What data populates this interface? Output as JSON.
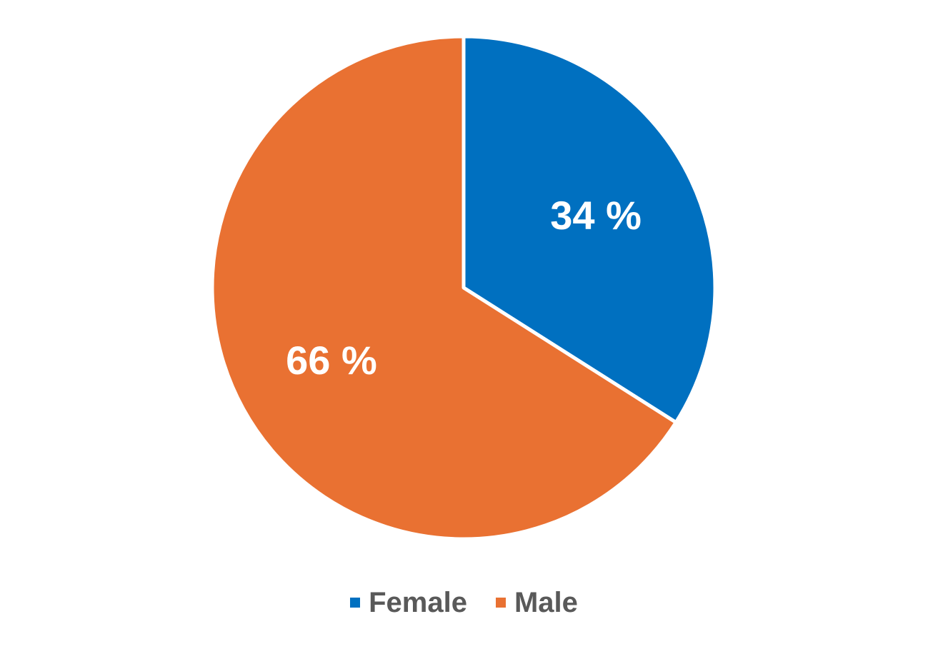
{
  "chart_data": {
    "type": "pie",
    "categories": [
      "Female",
      "Male"
    ],
    "values": [
      34,
      66
    ],
    "labels": [
      "34 %",
      "66 %"
    ],
    "colors": [
      "#0070C0",
      "#E97132"
    ],
    "title": "",
    "legend_position": "bottom",
    "start_angle": "top",
    "direction": "clockwise"
  }
}
